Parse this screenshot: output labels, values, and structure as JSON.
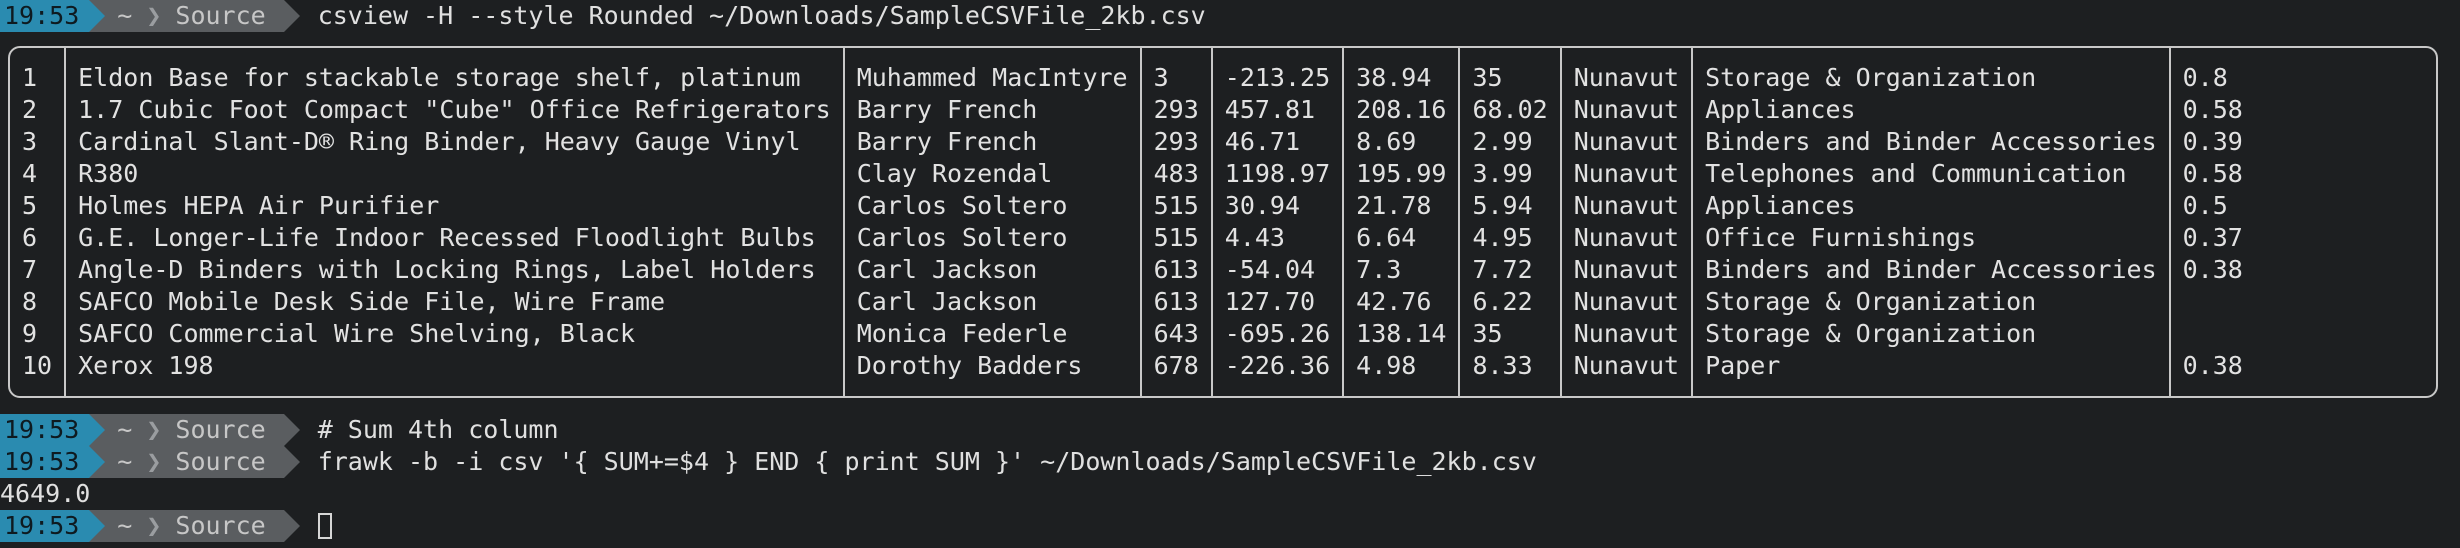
{
  "prompt": {
    "time": "19:53",
    "home": "~",
    "dir": "Source"
  },
  "commands": {
    "csview": "csview -H --style Rounded ~/Downloads/SampleCSVFile_2kb.csv",
    "comment": "# Sum 4th column",
    "frawk": "frawk -b -i csv '{ SUM+=$4 } END { print SUM }' ~/Downloads/SampleCSVFile_2kb.csv"
  },
  "sum_output": "4649.0",
  "table": {
    "rows": [
      [
        "1",
        "Eldon Base for stackable storage shelf, platinum",
        "Muhammed MacIntyre",
        "3",
        "-213.25",
        "38.94",
        "35",
        "Nunavut",
        "Storage & Organization",
        "0.8"
      ],
      [
        "2",
        "1.7 Cubic Foot Compact \"Cube\" Office Refrigerators",
        "Barry French",
        "293",
        "457.81",
        "208.16",
        "68.02",
        "Nunavut",
        "Appliances",
        "0.58"
      ],
      [
        "3",
        "Cardinal Slant-D® Ring Binder, Heavy Gauge Vinyl",
        "Barry French",
        "293",
        "46.71",
        "8.69",
        "2.99",
        "Nunavut",
        "Binders and Binder Accessories",
        "0.39"
      ],
      [
        "4",
        "R380",
        "Clay Rozendal",
        "483",
        "1198.97",
        "195.99",
        "3.99",
        "Nunavut",
        "Telephones and Communication",
        "0.58"
      ],
      [
        "5",
        "Holmes HEPA Air Purifier",
        "Carlos Soltero",
        "515",
        "30.94",
        "21.78",
        "5.94",
        "Nunavut",
        "Appliances",
        "0.5"
      ],
      [
        "6",
        "G.E. Longer-Life Indoor Recessed Floodlight Bulbs",
        "Carlos Soltero",
        "515",
        "4.43",
        "6.64",
        "4.95",
        "Nunavut",
        "Office Furnishings",
        "0.37"
      ],
      [
        "7",
        "Angle-D Binders with Locking Rings, Label Holders",
        "Carl Jackson",
        "613",
        "-54.04",
        "7.3",
        "7.72",
        "Nunavut",
        "Binders and Binder Accessories",
        "0.38"
      ],
      [
        "8",
        "SAFCO Mobile Desk Side File, Wire Frame",
        "Carl Jackson",
        "613",
        "127.70",
        "42.76",
        "6.22",
        "Nunavut",
        "Storage & Organization",
        ""
      ],
      [
        "9",
        "SAFCO Commercial Wire Shelving, Black",
        "Monica Federle",
        "643",
        "-695.26",
        "138.14",
        "35",
        "Nunavut",
        "Storage & Organization",
        ""
      ],
      [
        "10",
        "Xerox 198",
        "Dorothy Badders",
        "678",
        "-226.36",
        "4.98",
        "8.33",
        "Nunavut",
        "Paper",
        "0.38"
      ]
    ]
  }
}
